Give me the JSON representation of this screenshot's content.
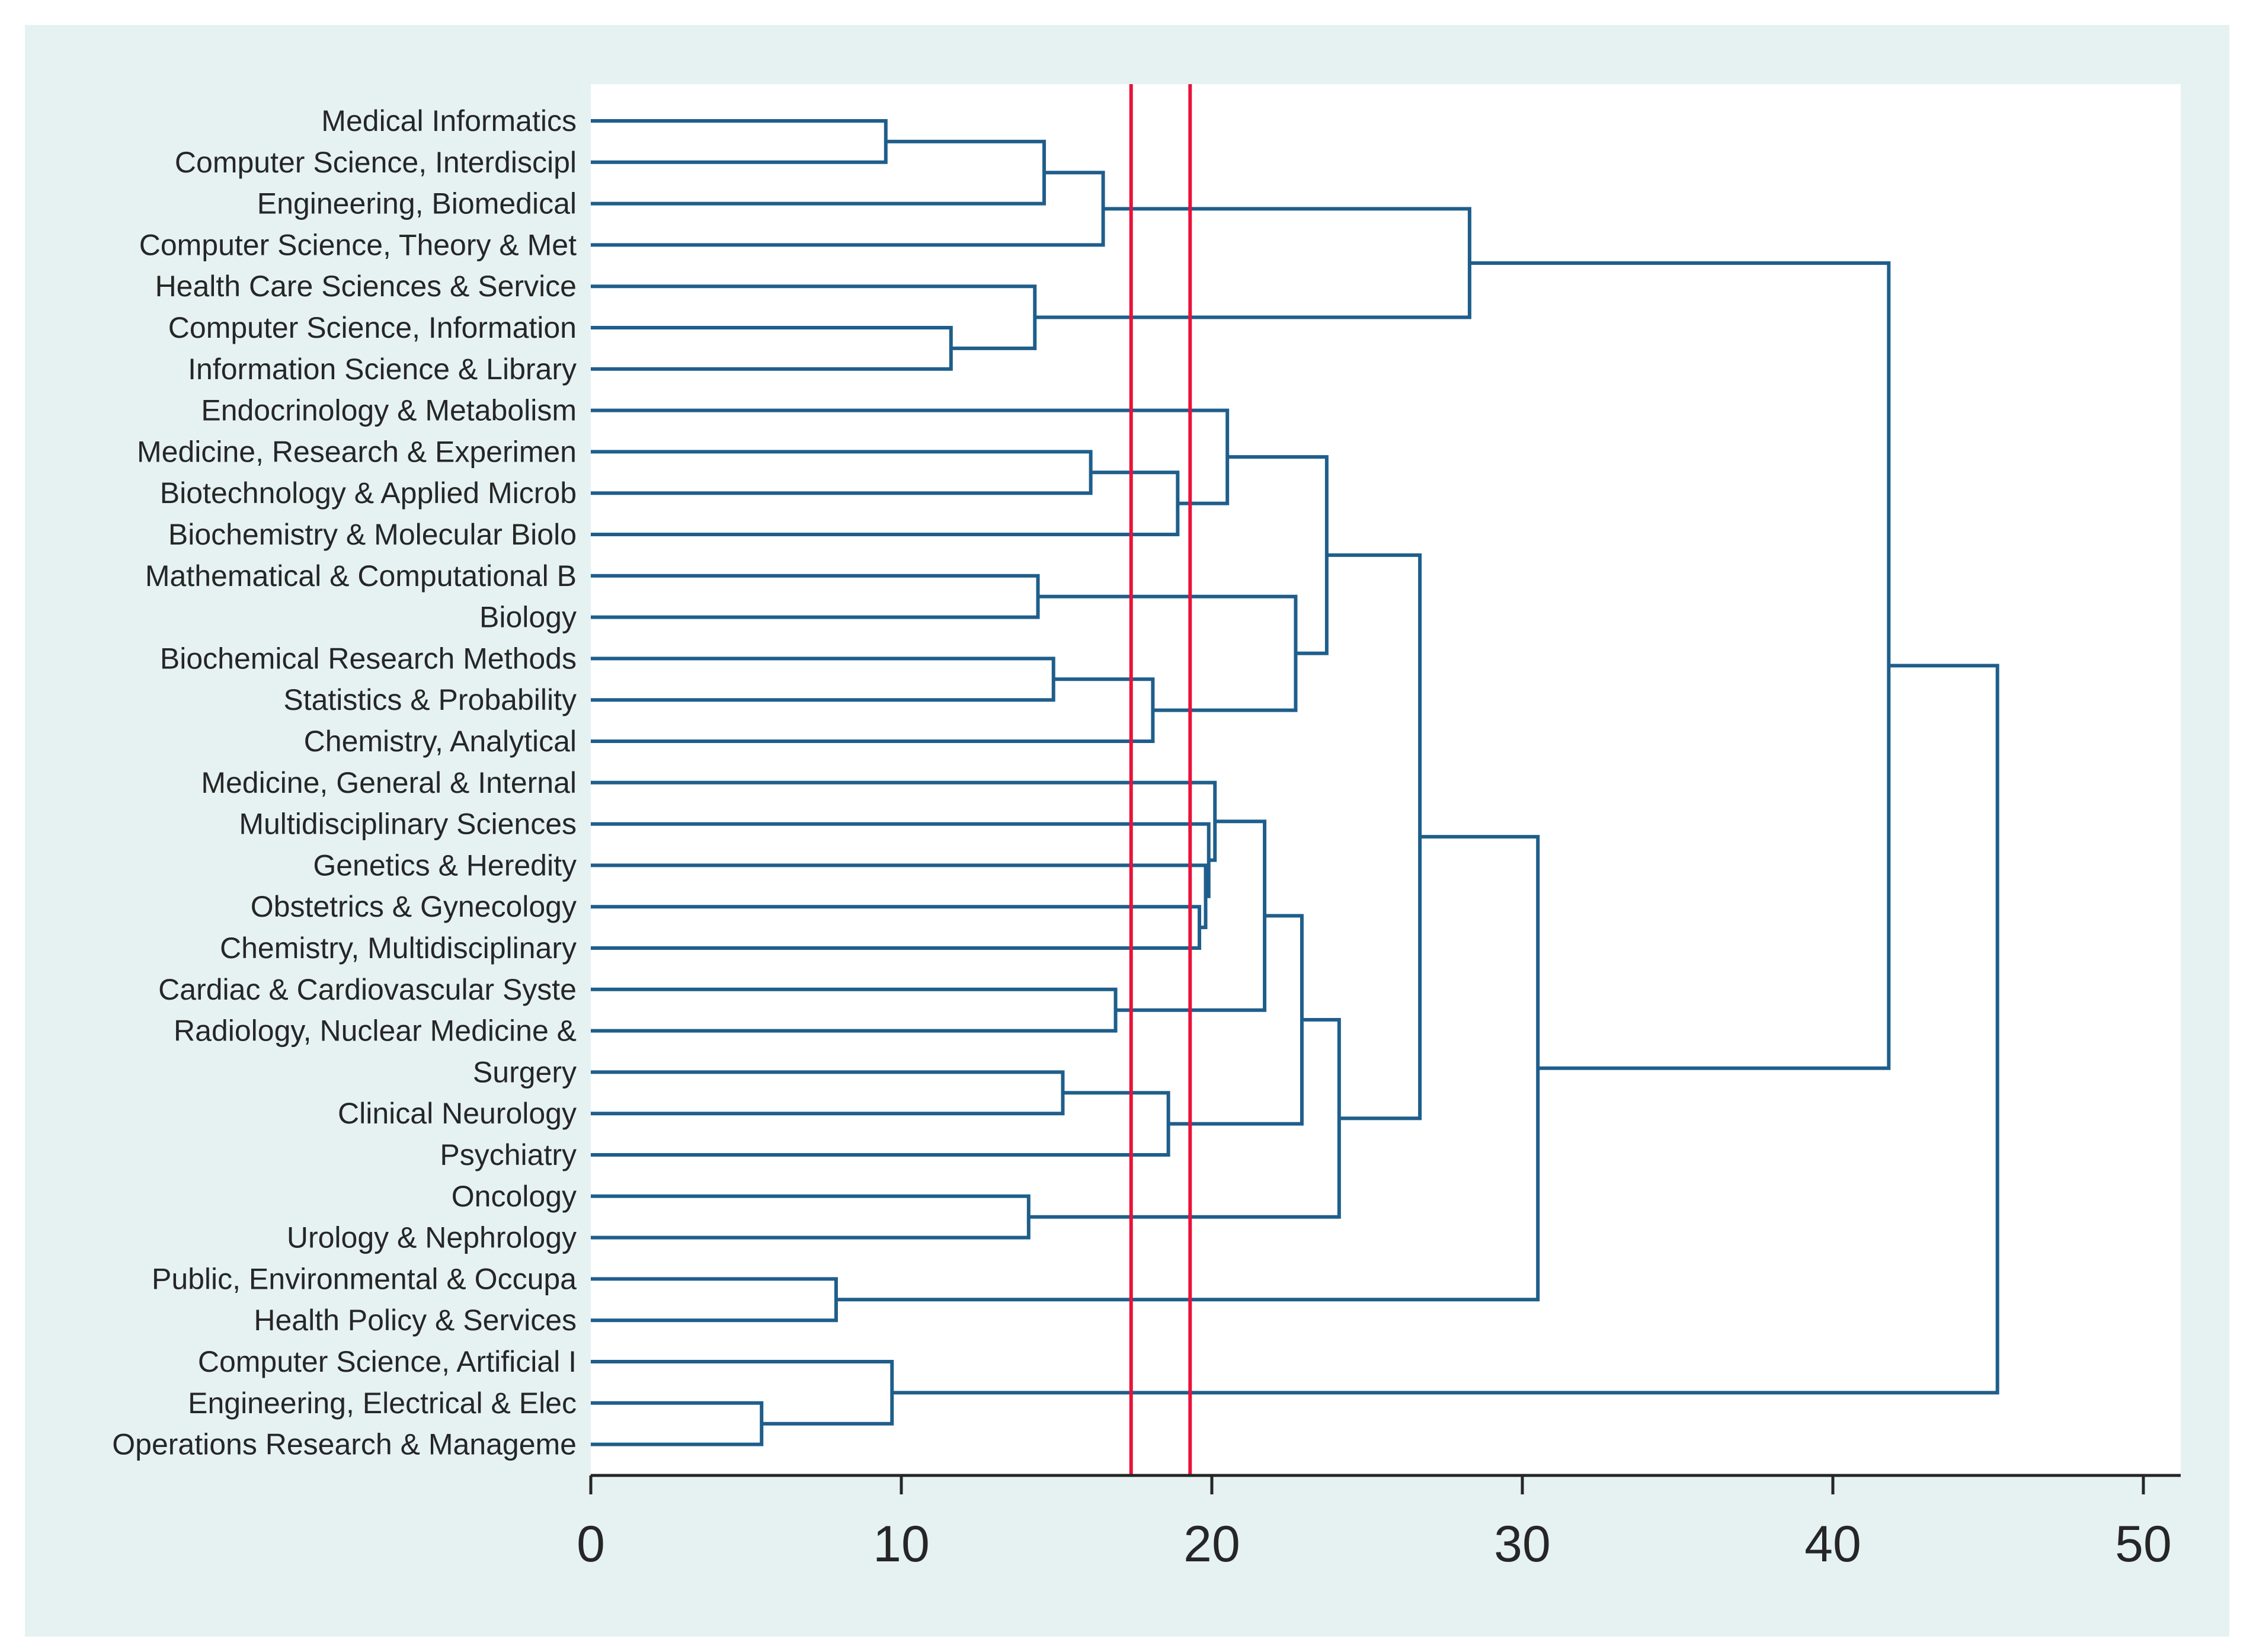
{
  "chart_data": {
    "type": "dendrogram",
    "orientation": "horizontal",
    "title": "",
    "xlabel": "",
    "ylabel": "",
    "xlim": [
      0,
      51
    ],
    "xticks": [
      0,
      10,
      20,
      30,
      40,
      50
    ],
    "reference_lines": [
      17.4,
      19.3
    ],
    "colors": {
      "outer_background": "#e6f2f2",
      "plot_background": "#ffffff",
      "links": "#1f5e8b",
      "reference_lines": "#e8123a",
      "axis": "#262626",
      "text": "#262626"
    },
    "leaves": [
      "Medical Informatics",
      "Computer Science, Interdiscipl",
      "Engineering, Biomedical",
      "Computer Science, Theory & Met",
      "Health Care Sciences & Service",
      "Computer Science, Information ",
      "Information Science & Library ",
      "Endocrinology & Metabolism",
      "Medicine, Research & Experimen",
      "Biotechnology & Applied Microb",
      "Biochemistry & Molecular Biolo",
      "Mathematical & Computational B",
      "Biology",
      "Biochemical Research Methods",
      "Statistics & Probability",
      "Chemistry, Analytical",
      "Medicine, General & Internal",
      "Multidisciplinary Sciences",
      "Genetics & Heredity",
      "Obstetrics & Gynecology",
      "Chemistry, Multidisciplinary",
      "Cardiac & Cardiovascular Syste",
      "Radiology, Nuclear Medicine & ",
      "Surgery",
      "Clinical Neurology",
      "Psychiatry",
      "Oncology",
      "Urology & Nephrology",
      "Public, Environmental & Occupa",
      "Health Policy & Services",
      "Computer Science, Artificial I",
      "Engineering, Electrical & Elec",
      "Operations Research & Manageme"
    ],
    "merges": [
      {
        "left": 0,
        "right": 1,
        "height": 9.5
      },
      {
        "left": "n0",
        "right": 2,
        "height": 14.6
      },
      {
        "left": "n1",
        "right": 3,
        "height": 16.5
      },
      {
        "left": 5,
        "right": 6,
        "height": 11.6
      },
      {
        "left": 4,
        "right": "n3",
        "height": 14.3
      },
      {
        "left": "n2",
        "right": "n4",
        "height": 28.3
      },
      {
        "left": 8,
        "right": 9,
        "height": 16.1
      },
      {
        "left": "n6",
        "right": 10,
        "height": 18.9
      },
      {
        "left": 7,
        "right": "n7",
        "height": 20.5
      },
      {
        "left": 11,
        "right": 12,
        "height": 14.4
      },
      {
        "left": 13,
        "right": 14,
        "height": 14.9
      },
      {
        "left": "n10",
        "right": 15,
        "height": 18.1
      },
      {
        "left": "n9",
        "right": "n11",
        "height": 22.7
      },
      {
        "left": "n8",
        "right": "n12",
        "height": 23.7
      },
      {
        "left": 19,
        "right": 20,
        "height": 19.6
      },
      {
        "left": 18,
        "right": "n14",
        "height": 19.8
      },
      {
        "left": 17,
        "right": "n15",
        "height": 19.9
      },
      {
        "left": 16,
        "right": "n16",
        "height": 20.1
      },
      {
        "left": 21,
        "right": 22,
        "height": 16.9
      },
      {
        "left": "n17",
        "right": "n18",
        "height": 21.7
      },
      {
        "left": 23,
        "right": 24,
        "height": 15.2
      },
      {
        "left": "n20",
        "right": 25,
        "height": 18.6
      },
      {
        "left": "n19",
        "right": "n21",
        "height": 22.9
      },
      {
        "left": 26,
        "right": 27,
        "height": 14.1
      },
      {
        "left": "n22",
        "right": "n23",
        "height": 24.1
      },
      {
        "left": "n13",
        "right": "n24",
        "height": 26.7
      },
      {
        "left": 28,
        "right": 29,
        "height": 7.9
      },
      {
        "left": "n25",
        "right": "n26",
        "height": 30.5
      },
      {
        "left": "n5",
        "right": "n27",
        "height": 41.8
      },
      {
        "left": 31,
        "right": 32,
        "height": 5.5
      },
      {
        "left": 30,
        "right": "n29",
        "height": 9.7
      },
      {
        "left": "n28",
        "right": "n30",
        "height": 45.3
      }
    ]
  }
}
